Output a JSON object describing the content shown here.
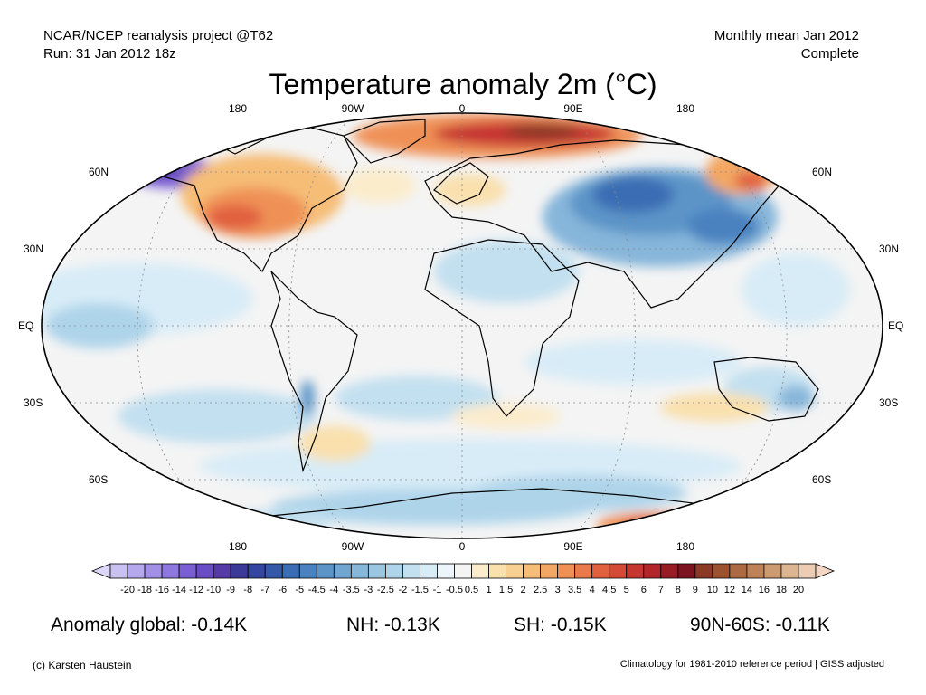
{
  "header": {
    "line1_left": "NCAR/NCEP reanalysis project @T62",
    "line2_left": "Run: 31 Jan 2012 18z",
    "line1_right": "Monthly mean Jan 2012",
    "line2_right": "Complete"
  },
  "title": "Temperature anomaly 2m (°C)",
  "axes": {
    "lon_labels": [
      "180",
      "90W",
      "0",
      "90E",
      "180"
    ],
    "lat_labels": [
      "60N",
      "30N",
      "EQ",
      "30S",
      "60S"
    ]
  },
  "colorbar": {
    "labels": [
      "-20",
      "-18",
      "-16",
      "-14",
      "-12",
      "-10",
      "-9",
      "-8",
      "-7",
      "-6",
      "-5",
      "-4.5",
      "-4",
      "-3.5",
      "-3",
      "-2.5",
      "-2",
      "-1.5",
      "-1",
      "-0.5",
      "0.5",
      "1",
      "1.5",
      "2",
      "2.5",
      "3",
      "3.5",
      "4",
      "4.5",
      "5",
      "6",
      "7",
      "8",
      "9",
      "10",
      "12",
      "14",
      "16",
      "18",
      "20"
    ],
    "colors": [
      "#c9c2f0",
      "#b6a8ec",
      "#a290e6",
      "#8e77de",
      "#7a5fd4",
      "#6a4cc4",
      "#553aa8",
      "#3b3a98",
      "#34469f",
      "#3559a8",
      "#3b6db4",
      "#4a82bf",
      "#5c94c8",
      "#70a6d1",
      "#86b6da",
      "#9ac6e2",
      "#aed4ea",
      "#c3e0f0",
      "#d8ecf7",
      "#ebf5fb",
      "#f4f4f4",
      "#fbeccc",
      "#f9e0ad",
      "#f8d192",
      "#f6bd77",
      "#f3a764",
      "#ef9156",
      "#ea7a4a",
      "#e1613f",
      "#d54a36",
      "#c63630",
      "#b1252b",
      "#971c26",
      "#7c1320",
      "#8a3a26",
      "#9b5231",
      "#ab6a42",
      "#bd8258",
      "#cd9b72",
      "#ddb591",
      "#eccdb3"
    ]
  },
  "stats": {
    "global": "Anomaly global: -0.14K",
    "nh": "NH: -0.13K",
    "sh": "SH: -0.15K",
    "band": "90N-60S: -0.11K"
  },
  "footer": {
    "left": "(c) Karsten Haustein",
    "right": "Climatology for 1981-2010 reference period | GISS adjusted"
  }
}
